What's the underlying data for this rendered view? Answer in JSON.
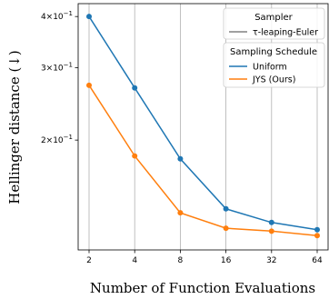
{
  "chart_data": {
    "type": "line",
    "x": [
      2,
      4,
      8,
      16,
      32,
      64
    ],
    "x_tick_labels": [
      "2",
      "4",
      "8",
      "16",
      "32",
      "64"
    ],
    "x_scale": "log2",
    "y_scale": "log",
    "ylim": [
      0.108,
      0.43
    ],
    "y_ticks": [
      {
        "value": 0.4,
        "base": "4×10",
        "exp": "−1"
      },
      {
        "value": 0.3,
        "base": "3×10",
        "exp": "−1"
      },
      {
        "value": 0.2,
        "base": "2×10",
        "exp": "−1"
      }
    ],
    "xlabel": "Number of Function Evaluations",
    "ylabel": "Hellinger distance (↓)",
    "series": [
      {
        "name": "Uniform",
        "color": "#1f77b4",
        "values": [
          0.4,
          0.268,
          0.18,
          0.136,
          0.126,
          0.121
        ]
      },
      {
        "name": "JYS (Ours)",
        "color": "#ff7f0e",
        "values": [
          0.272,
          0.183,
          0.133,
          0.122,
          0.12,
          0.117
        ]
      }
    ],
    "grid": "vertical-x",
    "legend": {
      "sampler_title": "Sampler",
      "sampler_entry": "τ-leaping-Euler",
      "sampler_color": "#808080",
      "schedule_title": "Sampling Schedule",
      "placement": "top-right"
    }
  }
}
